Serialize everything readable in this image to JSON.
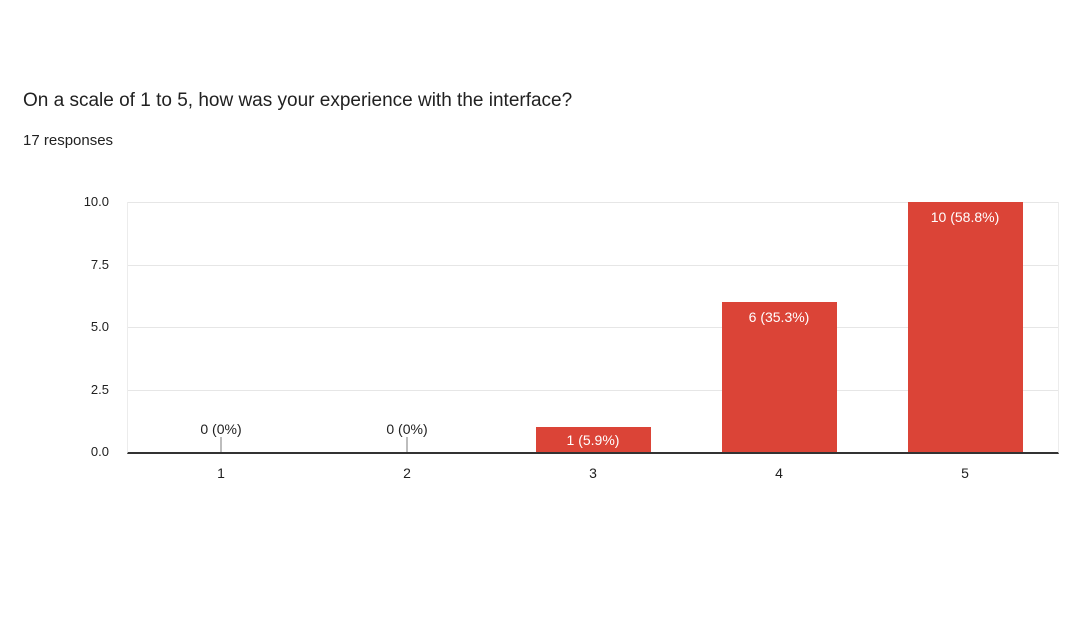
{
  "header": {
    "title": "On a scale of 1 to 5, how was your experience with the interface?",
    "responses_count": "17 responses"
  },
  "chart_data": {
    "type": "bar",
    "title": "On a scale of 1 to 5, how was your experience with the interface?",
    "subtitle": "17 responses",
    "categories": [
      "1",
      "2",
      "3",
      "4",
      "5"
    ],
    "values": [
      0,
      0,
      1,
      6,
      10
    ],
    "value_labels": [
      "0 (0%)",
      "0 (0%)",
      "1 (5.9%)",
      "6 (35.3%)",
      "10 (58.8%)"
    ],
    "xlabel": "",
    "ylabel": "",
    "ylim": [
      0,
      10
    ],
    "yticks": [
      0,
      2.5,
      5,
      7.5,
      10
    ],
    "ytick_labels": [
      "0.0",
      "2.5",
      "5.0",
      "7.5",
      "10.0"
    ],
    "grid": true,
    "legend": false,
    "colors": {
      "bar": "#db4437",
      "bar_label": "#ffffff",
      "zero_label": "#212121",
      "axis_line": "#333333",
      "gridline": "#e6e6e6",
      "zero_tick": "#bdbdbd",
      "text": "#212121"
    }
  }
}
